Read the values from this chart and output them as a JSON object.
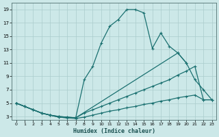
{
  "title": "",
  "xlabel": "Humidex (Indice chaleur)",
  "ylabel": "",
  "bg_color": "#cce8e8",
  "grid_color": "#aacccc",
  "line_color": "#1a7070",
  "xlim": [
    -0.5,
    23.5
  ],
  "ylim": [
    2.5,
    20.0
  ],
  "xticks": [
    0,
    1,
    2,
    3,
    4,
    5,
    6,
    7,
    8,
    9,
    10,
    11,
    12,
    13,
    14,
    15,
    16,
    17,
    18,
    19,
    20,
    21,
    22,
    23
  ],
  "yticks": [
    3,
    5,
    7,
    9,
    11,
    13,
    15,
    17,
    19
  ],
  "line1_x": [
    0,
    1,
    2,
    3,
    4,
    5,
    6,
    7,
    8,
    9,
    10,
    11,
    12,
    13,
    14,
    15,
    16,
    17,
    18,
    19,
    20
  ],
  "line1_y": [
    5.0,
    4.5,
    4.0,
    3.5,
    3.2,
    2.9,
    2.8,
    2.8,
    8.5,
    10.5,
    14.0,
    16.5,
    17.5,
    19.0,
    19.0,
    18.5,
    13.2,
    15.5,
    13.5,
    12.5,
    11.0
  ],
  "line2_x": [
    0,
    1,
    2,
    3,
    4,
    5,
    6,
    7,
    8,
    9,
    10,
    11,
    12,
    13,
    14,
    15,
    16,
    17,
    18,
    19,
    20,
    21,
    22,
    23
  ],
  "line2_y": [
    5.0,
    4.5,
    4.0,
    3.5,
    3.2,
    3.0,
    2.9,
    2.8,
    3.5,
    4.0,
    4.5,
    5.0,
    5.5,
    6.0,
    6.5,
    7.0,
    7.5,
    8.0,
    8.5,
    9.2,
    9.8,
    10.5,
    5.5,
    5.5
  ],
  "line3_x": [
    0,
    1,
    2,
    3,
    4,
    5,
    6,
    7,
    19,
    20,
    21,
    22,
    23
  ],
  "line3_y": [
    5.0,
    4.5,
    4.0,
    3.5,
    3.2,
    3.0,
    2.9,
    2.8,
    12.5,
    11.0,
    8.5,
    7.0,
    5.5
  ],
  "line4_x": [
    0,
    1,
    2,
    3,
    4,
    5,
    6,
    7,
    8,
    9,
    10,
    11,
    12,
    13,
    14,
    15,
    16,
    17,
    18,
    19,
    20,
    21,
    22,
    23
  ],
  "line4_y": [
    5.0,
    4.5,
    4.0,
    3.5,
    3.2,
    2.9,
    2.8,
    2.7,
    2.9,
    3.2,
    3.5,
    3.8,
    4.0,
    4.3,
    4.5,
    4.8,
    5.0,
    5.3,
    5.5,
    5.8,
    6.0,
    6.2,
    5.5,
    5.5
  ]
}
